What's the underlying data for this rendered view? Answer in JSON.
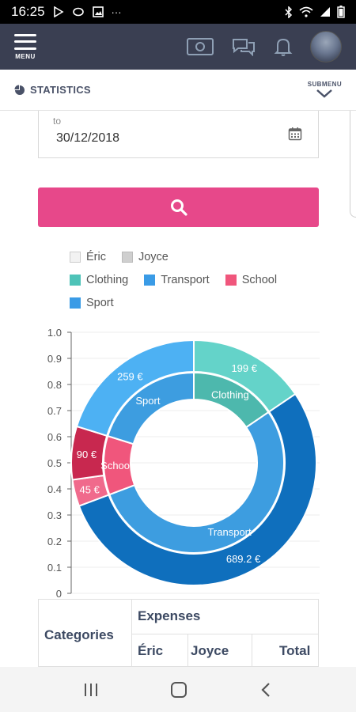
{
  "status_bar": {
    "time": "16:25",
    "more": "···"
  },
  "header": {
    "menu_label": "MENU"
  },
  "subheader": {
    "title": "STATISTICS",
    "submenu_label": "SUBMENU"
  },
  "filter": {
    "to_label": "to",
    "to_value": "30/12/2018"
  },
  "legend": [
    {
      "label": "Éric",
      "color": "#f2f2f2",
      "border": "#cccccc"
    },
    {
      "label": "Joyce",
      "color": "#cfcfcf",
      "border": "#bbbbbb"
    },
    {
      "label": "Clothing",
      "color": "#4ec3b8",
      "border": "#4ec3b8"
    },
    {
      "label": "Transport",
      "color": "#3a9be6",
      "border": "#3a9be6"
    },
    {
      "label": "School",
      "color": "#f0567c",
      "border": "#f0567c"
    },
    {
      "label": "Sport",
      "color": "#3a9be6",
      "border": "#3a9be6"
    }
  ],
  "chart_data": {
    "type": "pie",
    "subtype": "double-donut",
    "y_ticks": [
      "1.0",
      "0.9",
      "0.8",
      "0.7",
      "0.6",
      "0.5",
      "0.4",
      "0.3",
      "0.2",
      "0.1",
      "0"
    ],
    "ylim": [
      0,
      1
    ],
    "grid": true,
    "inner_ring": [
      {
        "label": "Clothing",
        "value": 199,
        "color": "#4db8ad"
      },
      {
        "label": "Transport",
        "value": 689.2,
        "color": "#3d9de0"
      },
      {
        "label": "School",
        "value": 135,
        "color": "#f0567c"
      },
      {
        "label": "Sport",
        "value": 259,
        "color": "#3d9de0"
      }
    ],
    "outer_ring": [
      {
        "label": "199 €",
        "value": 199,
        "color": "#64d3c9"
      },
      {
        "label": "689.2 €",
        "value": 689.2,
        "color": "#0f6fbd"
      },
      {
        "label": "45 €",
        "value": 45,
        "color": "#f06a8c"
      },
      {
        "label": "90 €",
        "value": 90,
        "color": "#c8284f"
      },
      {
        "label": "259 €",
        "value": 259,
        "color": "#4db1f3"
      }
    ]
  },
  "table": {
    "categories_header": "Categories",
    "expenses_header": "Expenses",
    "columns": [
      "Éric",
      "Joyce",
      "Total"
    ]
  }
}
